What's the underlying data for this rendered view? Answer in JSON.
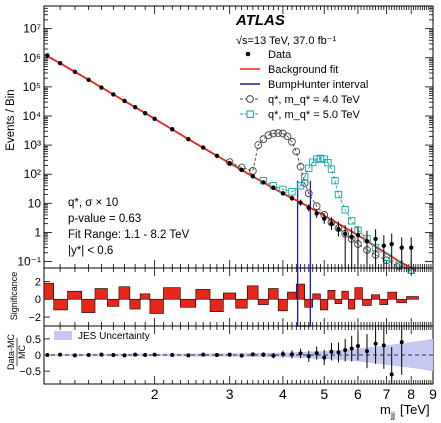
{
  "chart_data": [
    {
      "type": "scatter",
      "panel": "main",
      "ylabel": "Events / Bin",
      "yscale": "log",
      "ylim": [
        0.06,
        60000000
      ],
      "xscale": "log",
      "xlim": [
        1.1,
        9.0
      ],
      "yticks": [
        "10⁻¹",
        "1",
        "10",
        "10²",
        "10³",
        "10⁴",
        "10⁵",
        "10⁶",
        "10⁷"
      ],
      "experiment": "ATLAS",
      "energy_lumi": "√s=13 TeV, 37.0 fb⁻¹",
      "legend": [
        "Data",
        "Background fit",
        "BumpHunter interval",
        "q*, m_q* = 4.0 TeV",
        "q*, m_q* = 5.0 TeV"
      ],
      "legend_colors": [
        "#000000",
        "#e8261a",
        "#1e1ea0",
        "#444444",
        "#1aa3a3"
      ],
      "annotations": [
        "q*,  σ × 10",
        "p-value = 0.63",
        "Fit Range: 1.1 - 8.2 TeV",
        "|y*| < 0.6"
      ],
      "bumphunter_interval": [
        4.33,
        4.64
      ],
      "series": [
        {
          "name": "Data",
          "x": [
            1.12,
            1.2,
            1.3,
            1.4,
            1.5,
            1.6,
            1.7,
            1.8,
            1.9,
            2.0,
            2.2,
            2.4,
            2.6,
            2.8,
            3.0,
            3.2,
            3.4,
            3.6,
            3.8,
            4.0,
            4.2,
            4.4,
            4.6,
            4.8,
            5.0,
            5.2,
            5.4,
            5.6,
            5.8,
            6.0,
            6.3,
            6.6,
            6.9,
            7.2,
            7.6,
            8.0
          ],
          "y": [
            1200000,
            650000,
            330000,
            175000,
            95000,
            55000,
            33000,
            20000,
            12500,
            8000,
            3500,
            1600,
            820,
            430,
            240,
            140,
            85,
            52,
            34,
            22,
            15,
            10.5,
            7,
            4.5,
            3,
            2,
            1.3,
            0.9,
            0.7,
            0.8,
            0.5,
            0.6,
            0.35,
            0.4,
            0.3,
            0.3
          ]
        },
        {
          "name": "Background fit",
          "x": [
            1.1,
            1.2,
            1.4,
            1.6,
            1.8,
            2.0,
            2.4,
            2.8,
            3.2,
            3.6,
            4.0,
            4.5,
            5.0,
            5.5,
            6.0,
            6.5,
            7.0,
            7.5,
            8.2
          ],
          "y": [
            1300000,
            650000,
            175000,
            55000,
            20000,
            8000,
            1600,
            430,
            140,
            52,
            22,
            9,
            3.8,
            1.7,
            0.8,
            0.38,
            0.19,
            0.1,
            0.05
          ]
        },
        {
          "name": "q*, m_q* = 4.0 TeV",
          "x": [
            3.0,
            3.2,
            3.4,
            3.5,
            3.6,
            3.7,
            3.8,
            3.9,
            4.0,
            4.1,
            4.2,
            4.3,
            4.4,
            4.5,
            4.6,
            4.8,
            5.0,
            5.2,
            5.4,
            5.6,
            5.8,
            6.0,
            6.3,
            6.6,
            7.0,
            7.5,
            8.0
          ],
          "y": [
            260,
            170,
            130,
            1000,
            1600,
            2200,
            2500,
            2600,
            2500,
            2000,
            1300,
            600,
            180,
            50,
            22,
            8,
            4,
            2.2,
            1.4,
            0.9,
            0.6,
            0.4,
            0.25,
            0.17,
            0.11,
            0.07,
            0.05
          ]
        },
        {
          "name": "q*, m_q* = 5.0 TeV",
          "x": [
            3.6,
            3.8,
            4.0,
            4.2,
            4.4,
            4.5,
            4.6,
            4.7,
            4.8,
            4.9,
            5.0,
            5.1,
            5.2,
            5.3,
            5.4,
            5.6,
            5.8,
            6.0,
            6.3,
            6.6,
            7.0,
            7.5,
            8.0
          ],
          "y": [
            60,
            40,
            30,
            25,
            40,
            80,
            160,
            260,
            330,
            350,
            330,
            250,
            150,
            60,
            20,
            6,
            2.5,
            1.2,
            0.6,
            0.3,
            0.14,
            0.08,
            0.05
          ]
        }
      ]
    },
    {
      "type": "bar",
      "panel": "significance",
      "ylabel": "Significance",
      "ylim": [
        -3,
        3.5
      ],
      "yticks": [
        "−2",
        "0",
        "2"
      ],
      "x": [
        1.12,
        1.2,
        1.3,
        1.4,
        1.5,
        1.6,
        1.7,
        1.8,
        1.9,
        2.0,
        2.2,
        2.4,
        2.6,
        2.8,
        3.0,
        3.2,
        3.4,
        3.6,
        3.8,
        4.0,
        4.2,
        4.4,
        4.6,
        4.8,
        5.0,
        5.2,
        5.4,
        5.6,
        5.8,
        6.0,
        6.3,
        6.6,
        6.9,
        7.2,
        7.6,
        8.0
      ],
      "values": [
        1.8,
        -1.2,
        0.9,
        -1.5,
        1.2,
        -0.8,
        1.4,
        -1.1,
        0.6,
        -1.6,
        1.3,
        -0.9,
        1.1,
        -1.4,
        0.7,
        -1.0,
        1.5,
        -0.6,
        1.2,
        -1.3,
        0.8,
        1.7,
        -0.9,
        0.6,
        -1.2,
        1.0,
        -0.5,
        0.9,
        -1.1,
        1.3,
        -0.7,
        0.5,
        -0.6,
        0.8,
        -0.4,
        0.3
      ]
    },
    {
      "type": "scatter",
      "panel": "ratio",
      "ylabel": "Data-MC / MC",
      "ylim": [
        -0.9,
        0.9
      ],
      "yticks": [
        "−0.5",
        "0",
        "0.5"
      ],
      "band_label": "JES Uncertainty",
      "xlabel": "m_jj [TeV]",
      "xticks": [
        "2",
        "3",
        "4",
        "5",
        "6",
        "7",
        "8",
        "9"
      ],
      "x": [
        1.12,
        1.2,
        1.3,
        1.4,
        1.5,
        1.6,
        1.7,
        1.8,
        1.9,
        2.0,
        2.2,
        2.4,
        2.6,
        2.8,
        3.0,
        3.2,
        3.4,
        3.6,
        3.8,
        4.0,
        4.2,
        4.4,
        4.6,
        4.8,
        5.0,
        5.2,
        5.4,
        5.6,
        5.8,
        6.0,
        6.3,
        6.6,
        6.9,
        7.2,
        7.6
      ],
      "y": [
        0.0,
        0.01,
        -0.01,
        0.0,
        0.01,
        0.0,
        -0.01,
        0.01,
        0.0,
        0.01,
        0.0,
        -0.01,
        0.01,
        0.0,
        0.01,
        -0.02,
        0.02,
        0.01,
        -0.02,
        0.03,
        0.02,
        0.05,
        -0.04,
        0.06,
        -0.08,
        0.1,
        0.08,
        0.15,
        0.2,
        0.28,
        0.12,
        0.35,
        0.3,
        -0.6,
        0.4
      ]
    }
  ],
  "axis_titles": {
    "main_y": "Events / Bin",
    "sig_y": "Significance",
    "ratio_y_top": "Data-MC",
    "ratio_y_bottom": "MC",
    "x": "m",
    "x_sub": "jj",
    "x_unit": "[TeV]"
  }
}
